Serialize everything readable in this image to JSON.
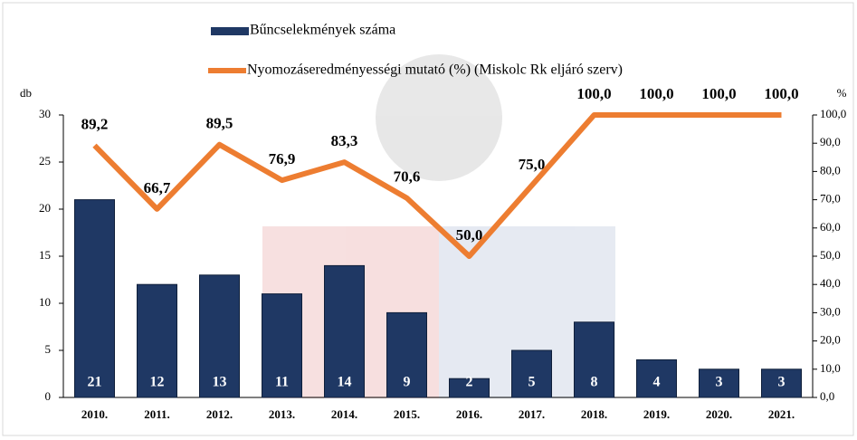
{
  "chart_data": {
    "type": "bar-line",
    "y_label": "db",
    "y2_label": "%",
    "categories": [
      "2010.",
      "2011.",
      "2012.",
      "2013.",
      "2014.",
      "2015.",
      "2016.",
      "2017.",
      "2018.",
      "2019.",
      "2020.",
      "2021."
    ],
    "series": [
      {
        "name": "Bűncselekmények száma",
        "type": "bar",
        "color": "#1f3864",
        "values": [
          21,
          12,
          13,
          11,
          14,
          9,
          2,
          5,
          8,
          4,
          3,
          3
        ]
      },
      {
        "name": "Nyomozáseredményességi mutató (%) (Miskolc Rk eljáró szerv)",
        "type": "line",
        "axis": "y2",
        "color": "#ed7d31",
        "values": [
          89.2,
          66.7,
          89.5,
          76.9,
          83.3,
          70.6,
          50.0,
          75.0,
          100.0,
          100.0,
          100.0,
          100.0
        ],
        "value_labels": [
          "89,2",
          "66,7",
          "89,5",
          "76,9",
          "83,3",
          "70,6",
          "50,0",
          "75,0",
          "100,0",
          "100,0",
          "100,0",
          "100,0"
        ]
      }
    ],
    "ylim": [
      0,
      30
    ],
    "yticks": [
      0,
      5,
      10,
      15,
      20,
      25,
      30
    ],
    "y2lim": [
      0,
      100
    ],
    "y2ticks": [
      {
        "value": 0,
        "label": "0,0"
      },
      {
        "value": 10,
        "label": "10,0"
      },
      {
        "value": 20,
        "label": "20,0"
      },
      {
        "value": 30,
        "label": "30,0"
      },
      {
        "value": 40,
        "label": "40,0"
      },
      {
        "value": 50,
        "label": "50,0"
      },
      {
        "value": 60,
        "label": "60,0"
      },
      {
        "value": 70,
        "label": "70,0"
      },
      {
        "value": 80,
        "label": "80,0"
      },
      {
        "value": 90,
        "label": "90,0"
      },
      {
        "value": 100,
        "label": "100,0"
      }
    ]
  }
}
